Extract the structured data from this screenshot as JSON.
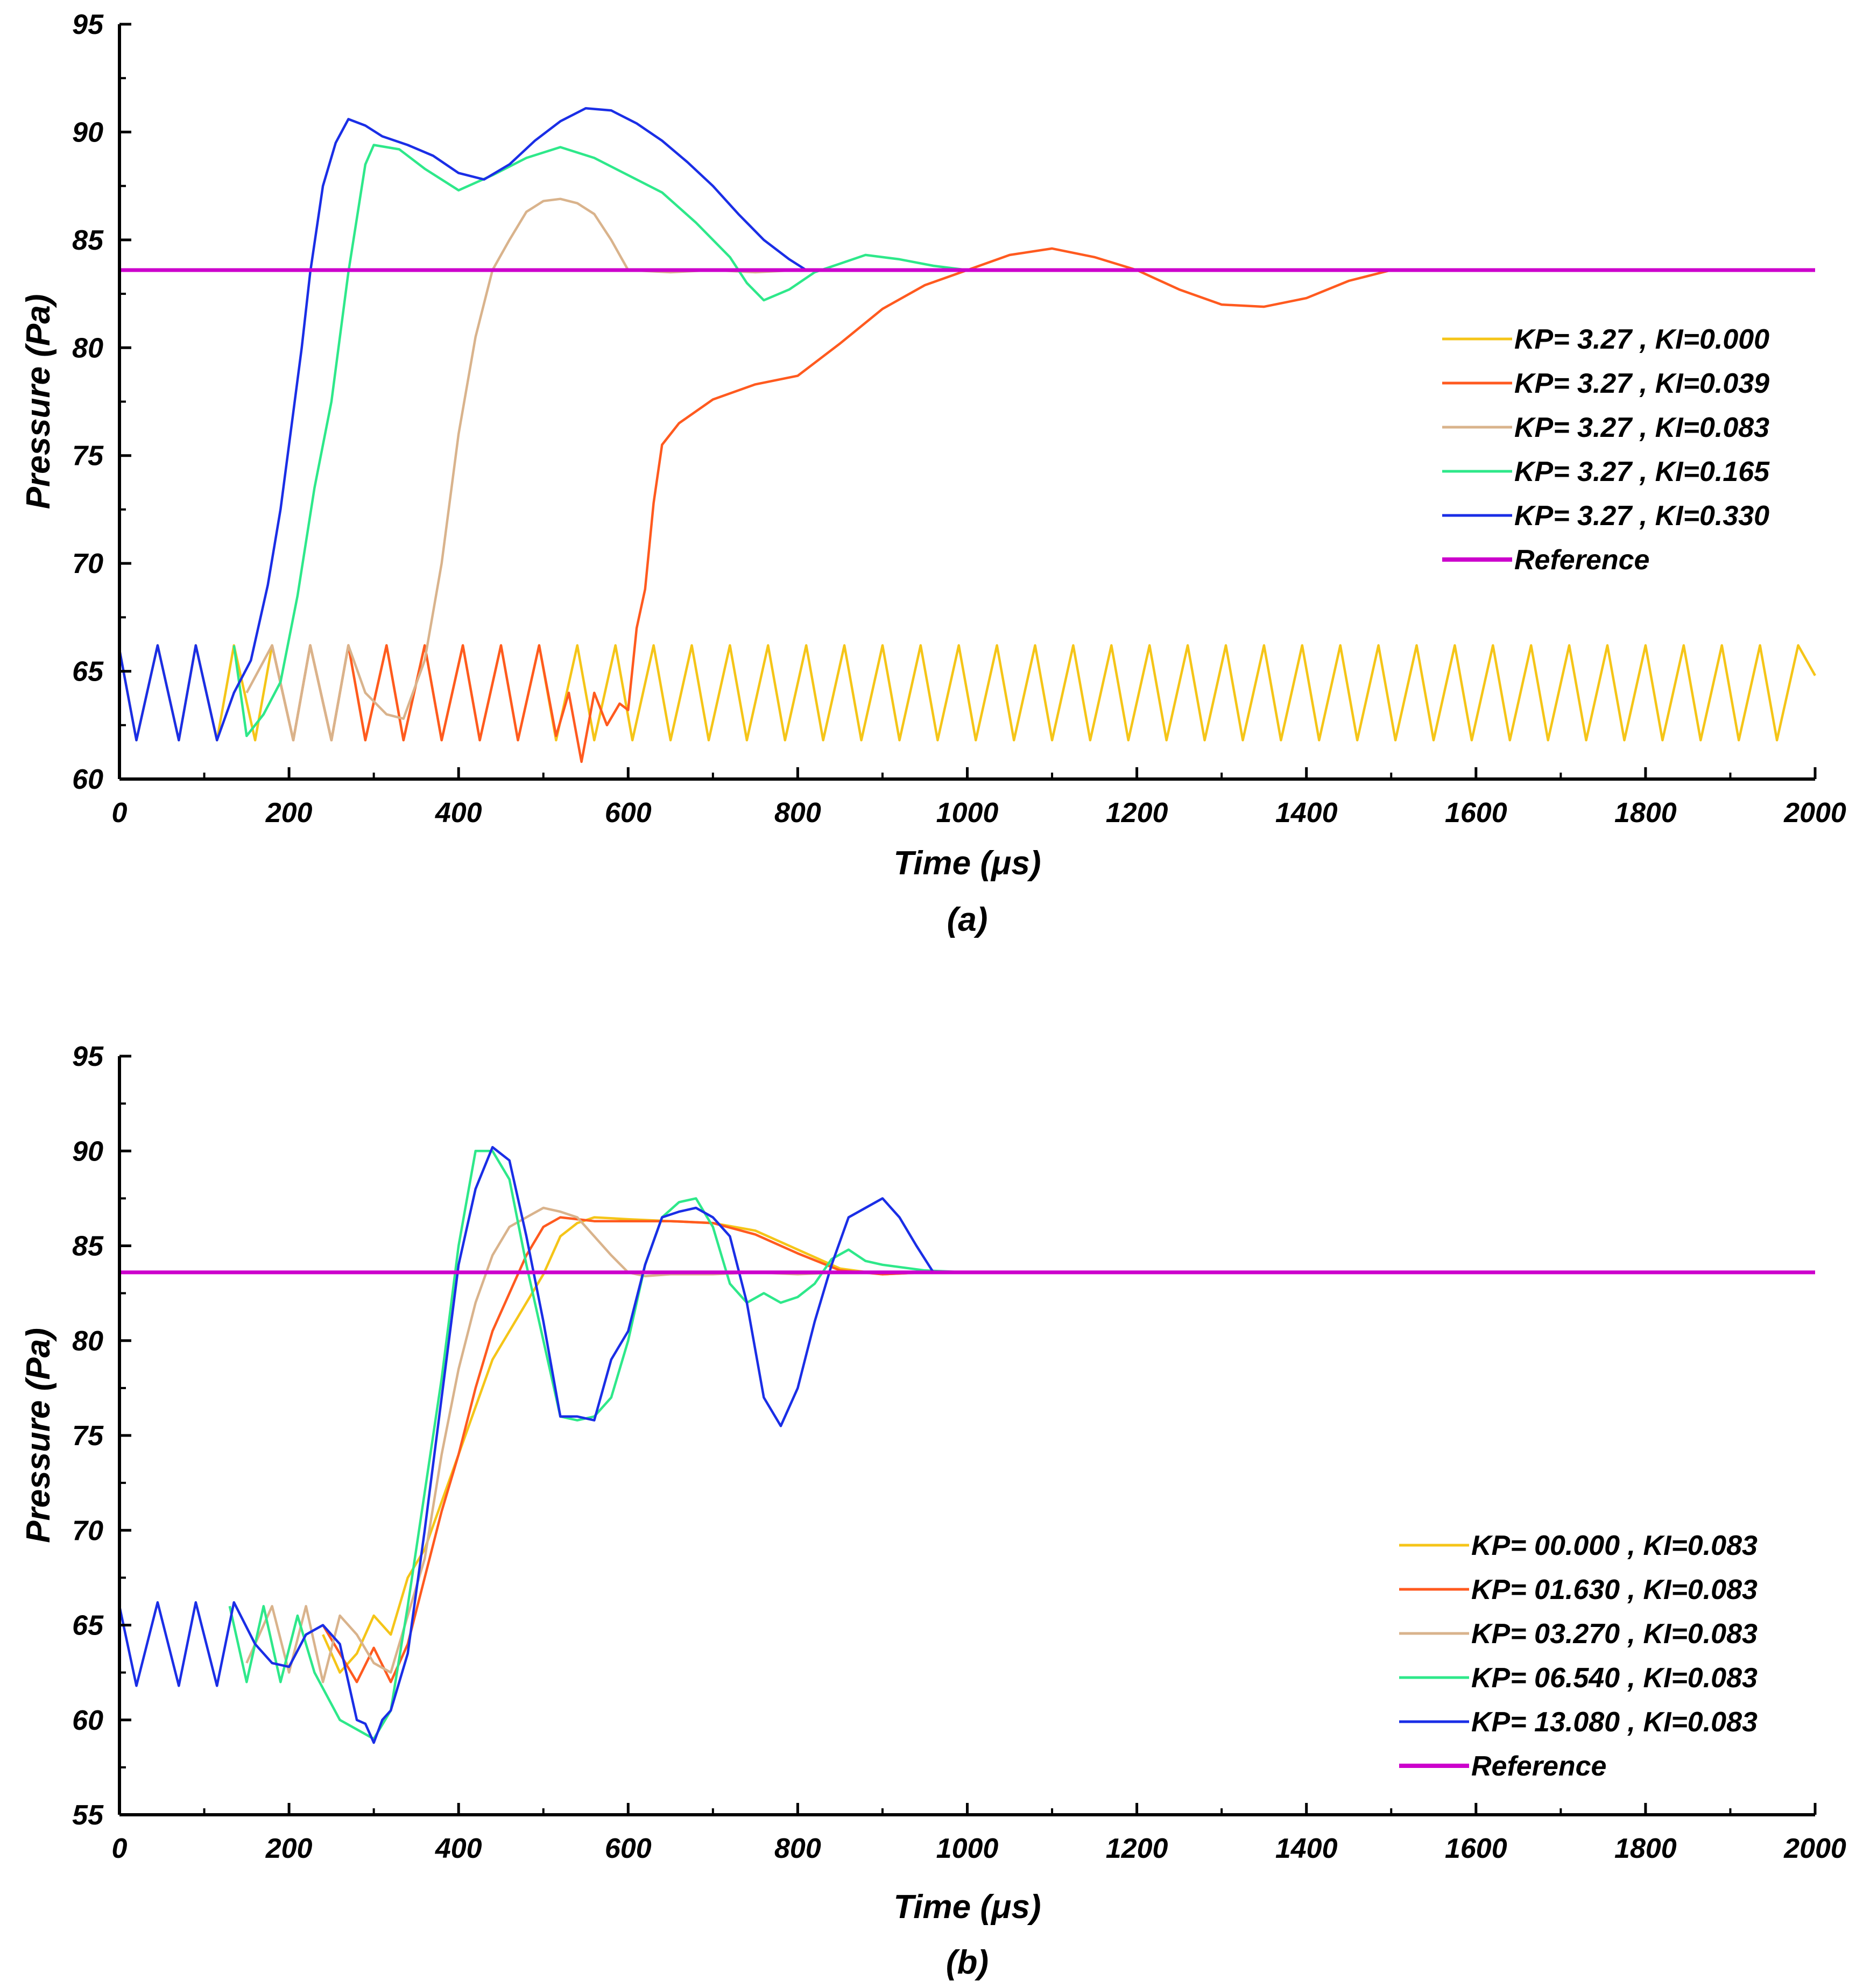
{
  "chart_data": [
    {
      "type": "line",
      "panel_label": "(a)",
      "xlabel": "Time (μs)",
      "ylabel": "Pressure (Pa)",
      "xlim": [
        0,
        2000
      ],
      "ylim": [
        60,
        95
      ],
      "xticks": [
        0,
        200,
        400,
        600,
        800,
        1000,
        1200,
        1400,
        1600,
        1800,
        2000
      ],
      "yticks": [
        60,
        65,
        70,
        75,
        80,
        85,
        90,
        95
      ],
      "legend_position": "right-middle",
      "series": [
        {
          "name": "KP= 3.27 , KI=0.000",
          "color": "#f5c518",
          "x": [
            0,
            20,
            45,
            70,
            90,
            115,
            135,
            160,
            180,
            205,
            225,
            250,
            270,
            290,
            315,
            335,
            360,
            380,
            405,
            425,
            450,
            470,
            495,
            515,
            540,
            560,
            585,
            605,
            630,
            650,
            675,
            695,
            720,
            740,
            765,
            785,
            810,
            830,
            855,
            875,
            900,
            920,
            945,
            965,
            990,
            1010,
            1035,
            1055,
            1080,
            1100,
            1125,
            1145,
            1170,
            1190,
            1215,
            1235,
            1260,
            1280,
            1305,
            1325,
            1350,
            1370,
            1395,
            1415,
            1440,
            1460,
            1485,
            1505,
            1530,
            1550,
            1575,
            1595,
            1620,
            1640,
            1665,
            1685,
            1710,
            1730,
            1755,
            1775,
            1800,
            1820,
            1845,
            1865,
            1890,
            1910,
            1935,
            1955,
            1980,
            2000
          ],
          "y": [
            66,
            61.8,
            66.2,
            61.8,
            66.2,
            61.8,
            66.2,
            61.8,
            66.2,
            61.8,
            66.2,
            61.8,
            66.2,
            61.8,
            66.2,
            61.8,
            66.2,
            61.8,
            66.2,
            61.8,
            66.2,
            61.8,
            66.2,
            61.8,
            66.2,
            61.8,
            66.2,
            61.8,
            66.2,
            61.8,
            66.2,
            61.8,
            66.2,
            61.8,
            66.2,
            61.8,
            66.2,
            61.8,
            66.2,
            61.8,
            66.2,
            61.8,
            66.2,
            61.8,
            66.2,
            61.8,
            66.2,
            61.8,
            66.2,
            61.8,
            66.2,
            61.8,
            66.2,
            61.8,
            66.2,
            61.8,
            66.2,
            61.8,
            66.2,
            61.8,
            66.2,
            61.8,
            66.2,
            61.8,
            66.2,
            61.8,
            66.2,
            61.8,
            66.2,
            61.8,
            66.2,
            61.8,
            66.2,
            61.8,
            66.2,
            61.8,
            66.2,
            61.8,
            66.2,
            61.8,
            66.2,
            61.8,
            66.2,
            61.8,
            66.2,
            61.8,
            66.2,
            61.8,
            66.2,
            64.8
          ]
        },
        {
          "name": "KP= 3.27 , KI=0.039",
          "color": "#ff5a1f",
          "x": [
            180,
            205,
            225,
            250,
            270,
            290,
            315,
            335,
            360,
            380,
            405,
            425,
            450,
            470,
            495,
            515,
            530,
            545,
            560,
            575,
            590,
            600,
            610,
            620,
            630,
            640,
            660,
            700,
            750,
            800,
            850,
            900,
            950,
            1000,
            1050,
            1100,
            1150,
            1200,
            1250,
            1300,
            1350,
            1400,
            1450,
            1500,
            1550,
            1600,
            1650,
            1700,
            1750,
            1800,
            1850,
            1900,
            1950,
            2000
          ],
          "y": [
            66.2,
            61.8,
            66.2,
            61.8,
            66.2,
            61.8,
            66.2,
            61.8,
            66.2,
            61.8,
            66.2,
            61.8,
            66.2,
            61.8,
            66.2,
            62,
            64,
            60.8,
            64,
            62.5,
            63.5,
            63.2,
            67,
            68.8,
            72.8,
            75.5,
            76.5,
            77.6,
            78.3,
            78.7,
            80.2,
            81.8,
            82.9,
            83.6,
            84.3,
            84.6,
            84.2,
            83.6,
            82.7,
            82,
            81.9,
            82.3,
            83.1,
            83.6,
            83.6,
            83.6,
            83.6,
            83.6,
            83.6,
            83.6,
            83.6,
            83.6,
            83.6,
            83.6
          ]
        },
        {
          "name": "KP= 3.27 , KI=0.083",
          "color": "#d9b38c",
          "x": [
            150,
            180,
            205,
            225,
            250,
            270,
            290,
            315,
            335,
            360,
            380,
            400,
            420,
            440,
            460,
            480,
            500,
            520,
            540,
            560,
            580,
            600,
            650,
            700,
            750,
            800,
            850,
            900,
            950,
            1000,
            1100,
            1200,
            1300,
            1400,
            1500,
            1600,
            1700,
            1800,
            1900,
            2000
          ],
          "y": [
            64,
            66.2,
            61.8,
            66.2,
            61.8,
            66.2,
            64,
            63,
            62.8,
            65.5,
            70,
            76,
            80.5,
            83.6,
            85,
            86.3,
            86.8,
            86.9,
            86.7,
            86.2,
            85,
            83.6,
            83.5,
            83.6,
            83.5,
            83.6,
            83.6,
            83.6,
            83.6,
            83.6,
            83.6,
            83.6,
            83.6,
            83.6,
            83.6,
            83.6,
            83.6,
            83.6,
            83.6,
            83.6
          ]
        },
        {
          "name": "KP= 3.27 , KI=0.165",
          "color": "#2ee88a",
          "x": [
            135,
            150,
            170,
            190,
            210,
            230,
            250,
            270,
            290,
            300,
            330,
            360,
            400,
            440,
            480,
            520,
            560,
            600,
            640,
            680,
            720,
            740,
            760,
            790,
            820,
            850,
            880,
            920,
            960,
            1000,
            1100,
            1200,
            1300,
            1400,
            1500,
            1600,
            1700,
            1800,
            1900,
            2000
          ],
          "y": [
            66.2,
            62,
            63,
            64.5,
            68.5,
            73.5,
            77.5,
            83.5,
            88.5,
            89.4,
            89.2,
            88.3,
            87.3,
            88,
            88.8,
            89.3,
            88.8,
            88,
            87.2,
            85.8,
            84.2,
            83,
            82.2,
            82.7,
            83.5,
            83.9,
            84.3,
            84.1,
            83.8,
            83.6,
            83.6,
            83.6,
            83.6,
            83.6,
            83.6,
            83.6,
            83.6,
            83.6,
            83.6,
            83.6
          ]
        },
        {
          "name": "KP= 3.27 , KI=0.330",
          "color": "#1a2ee6",
          "x": [
            0,
            20,
            45,
            70,
            90,
            115,
            135,
            155,
            175,
            190,
            205,
            215,
            225,
            240,
            255,
            270,
            290,
            310,
            340,
            370,
            400,
            430,
            460,
            490,
            520,
            550,
            580,
            610,
            640,
            670,
            700,
            730,
            760,
            790,
            810,
            850,
            900,
            1000,
            1100,
            1200,
            1300,
            1400,
            1500,
            1600,
            1700,
            1800,
            1900,
            2000
          ],
          "y": [
            66,
            61.8,
            66.2,
            61.8,
            66.2,
            61.8,
            64,
            65.5,
            69,
            72.5,
            77,
            80,
            83.5,
            87.5,
            89.5,
            90.6,
            90.3,
            89.8,
            89.4,
            88.9,
            88.1,
            87.8,
            88.5,
            89.6,
            90.5,
            91.1,
            91,
            90.4,
            89.6,
            88.6,
            87.5,
            86.2,
            85,
            84.1,
            83.6,
            83.6,
            83.6,
            83.6,
            83.6,
            83.6,
            83.6,
            83.6,
            83.6,
            83.6,
            83.6,
            83.6,
            83.6,
            83.6
          ]
        },
        {
          "name": "Reference",
          "color": "#cc00cc",
          "x": [
            0,
            2000
          ],
          "y": [
            83.6,
            83.6
          ]
        }
      ]
    },
    {
      "type": "line",
      "panel_label": "(b)",
      "xlabel": "Time (μs)",
      "ylabel": "Pressure (Pa)",
      "xlim": [
        0,
        2000
      ],
      "ylim": [
        55,
        95
      ],
      "xticks": [
        0,
        200,
        400,
        600,
        800,
        1000,
        1200,
        1400,
        1600,
        1800,
        2000
      ],
      "yticks": [
        55,
        60,
        65,
        70,
        75,
        80,
        85,
        90,
        95
      ],
      "legend_position": "bottom-right",
      "series": [
        {
          "name": "KP= 00.000 , KI=0.083",
          "color": "#f5c518",
          "x": [
            240,
            260,
            280,
            300,
            320,
            340,
            360,
            380,
            400,
            420,
            440,
            460,
            480,
            500,
            520,
            540,
            560,
            600,
            650,
            700,
            750,
            800,
            850,
            900,
            950,
            1000,
            1200,
            1400,
            1600,
            1800,
            2000
          ],
          "y": [
            64.5,
            62.5,
            63.5,
            65.5,
            64.5,
            67.5,
            69,
            71.5,
            74,
            76.5,
            79,
            80.5,
            82,
            83.5,
            85.5,
            86.2,
            86.5,
            86.4,
            86.3,
            86.2,
            85.8,
            84.8,
            83.8,
            83.5,
            83.6,
            83.6,
            83.6,
            83.6,
            83.6,
            83.6,
            83.6
          ]
        },
        {
          "name": "KP= 01.630 , KI=0.083",
          "color": "#ff5a1f",
          "x": [
            240,
            260,
            280,
            300,
            320,
            340,
            360,
            380,
            400,
            420,
            440,
            460,
            480,
            500,
            520,
            540,
            560,
            600,
            650,
            700,
            750,
            800,
            850,
            900,
            950,
            1000,
            1200,
            1400,
            1600,
            1800,
            2000
          ],
          "y": [
            65,
            63.5,
            62,
            63.8,
            62,
            64,
            67.5,
            71,
            74,
            77.5,
            80.5,
            82.5,
            84.5,
            86,
            86.5,
            86.4,
            86.3,
            86.3,
            86.3,
            86.2,
            85.6,
            84.6,
            83.7,
            83.5,
            83.6,
            83.6,
            83.6,
            83.6,
            83.6,
            83.6,
            83.6
          ]
        },
        {
          "name": "KP= 03.270 , KI=0.083",
          "color": "#d9b38c",
          "x": [
            150,
            180,
            200,
            220,
            240,
            260,
            280,
            300,
            320,
            340,
            360,
            380,
            400,
            420,
            440,
            460,
            480,
            500,
            520,
            540,
            560,
            580,
            600,
            620,
            650,
            700,
            750,
            800,
            850,
            900,
            950,
            1000,
            1200,
            1400,
            1600,
            1800,
            2000
          ],
          "y": [
            63,
            66,
            62.5,
            66,
            62,
            65.5,
            64.5,
            63,
            62.5,
            65.5,
            68.5,
            74,
            78.5,
            82,
            84.5,
            86,
            86.5,
            87,
            86.8,
            86.5,
            85.5,
            84.5,
            83.6,
            83.4,
            83.5,
            83.5,
            83.6,
            83.5,
            83.6,
            83.6,
            83.6,
            83.6,
            83.6,
            83.6,
            83.6,
            83.6,
            83.6
          ]
        },
        {
          "name": "KP= 06.540 , KI=0.083",
          "color": "#2ee88a",
          "x": [
            130,
            150,
            170,
            190,
            210,
            230,
            260,
            280,
            300,
            320,
            340,
            360,
            380,
            400,
            420,
            440,
            460,
            480,
            500,
            520,
            540,
            560,
            580,
            600,
            620,
            640,
            660,
            680,
            700,
            720,
            740,
            760,
            780,
            800,
            820,
            840,
            860,
            880,
            900,
            950,
            1000,
            1200,
            1400,
            1600,
            1800,
            2000
          ],
          "y": [
            66,
            62,
            66,
            62,
            65.5,
            62.5,
            60,
            59.5,
            59,
            60.5,
            66,
            72,
            78,
            85,
            90,
            90,
            88.5,
            84,
            80,
            76,
            75.8,
            76,
            77,
            80,
            84,
            86.5,
            87.3,
            87.5,
            86,
            83,
            82,
            82.5,
            82,
            82.3,
            83,
            84.3,
            84.8,
            84.2,
            84,
            83.7,
            83.6,
            83.6,
            83.6,
            83.6,
            83.6,
            83.6
          ]
        },
        {
          "name": "KP= 13.080 , KI=0.083",
          "color": "#1a2ee6",
          "x": [
            0,
            20,
            45,
            70,
            90,
            115,
            135,
            160,
            180,
            200,
            220,
            240,
            260,
            280,
            290,
            300,
            310,
            320,
            340,
            360,
            380,
            400,
            420,
            440,
            460,
            480,
            500,
            520,
            540,
            560,
            580,
            600,
            620,
            640,
            660,
            680,
            700,
            720,
            740,
            760,
            780,
            800,
            820,
            840,
            860,
            880,
            900,
            920,
            940,
            960,
            1000,
            1200,
            1400,
            1600,
            1800,
            2000
          ],
          "y": [
            66,
            61.8,
            66.2,
            61.8,
            66.2,
            61.8,
            66.2,
            64,
            63,
            62.8,
            64.5,
            65,
            64,
            60,
            59.8,
            58.8,
            60,
            60.5,
            63.5,
            70,
            77,
            84,
            88,
            90.2,
            89.5,
            85.5,
            81,
            76,
            76,
            75.8,
            79,
            80.5,
            84,
            86.5,
            86.8,
            87,
            86.5,
            85.5,
            82,
            77,
            75.5,
            77.5,
            81,
            84,
            86.5,
            87,
            87.5,
            86.5,
            85,
            83.6,
            83.6,
            83.6,
            83.6,
            83.6,
            83.6,
            83.6
          ]
        },
        {
          "name": "Reference",
          "color": "#cc00cc",
          "x": [
            0,
            2000
          ],
          "y": [
            83.6,
            83.6
          ]
        }
      ]
    }
  ]
}
